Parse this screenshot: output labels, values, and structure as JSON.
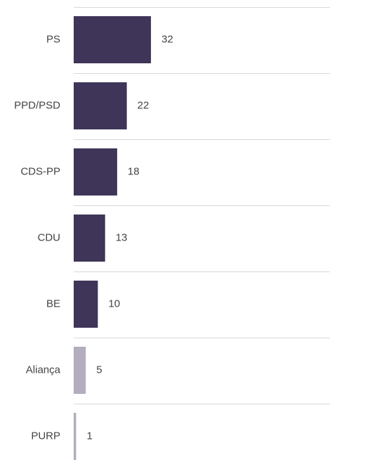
{
  "chart_data": {
    "type": "bar",
    "orientation": "horizontal",
    "categories": [
      "PS",
      "PPD/PSD",
      "CDS-PP",
      "CDU",
      "BE",
      "Aliança",
      "PURP"
    ],
    "values": [
      32,
      22,
      18,
      13,
      10,
      5,
      1
    ],
    "colors": [
      "#3f3558",
      "#3f3558",
      "#3f3558",
      "#3f3558",
      "#3f3558",
      "#b3adbd",
      "#b3adbd"
    ]
  }
}
